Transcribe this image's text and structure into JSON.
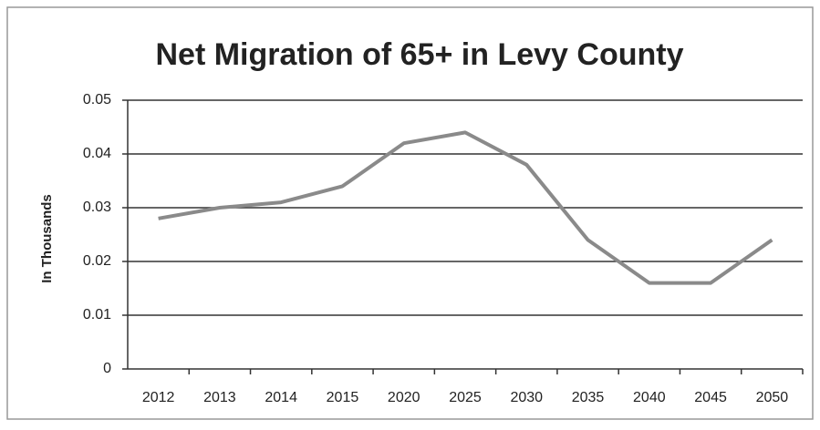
{
  "chart_data": {
    "type": "line",
    "title": "Net Migration of 65+ in Levy County",
    "y_label": "In Thousands",
    "categories": [
      "2012",
      "2013",
      "2014",
      "2015",
      "2020",
      "2025",
      "2030",
      "2035",
      "2040",
      "2045",
      "2050"
    ],
    "values": [
      0.028,
      0.03,
      0.031,
      0.034,
      0.042,
      0.044,
      0.038,
      0.024,
      0.016,
      0.016,
      0.024
    ],
    "color": "#8a8a8a",
    "ylim": [
      0,
      0.05
    ],
    "yticks": [
      0,
      0.01,
      0.02,
      0.03,
      0.04,
      0.05
    ],
    "grid": true
  }
}
